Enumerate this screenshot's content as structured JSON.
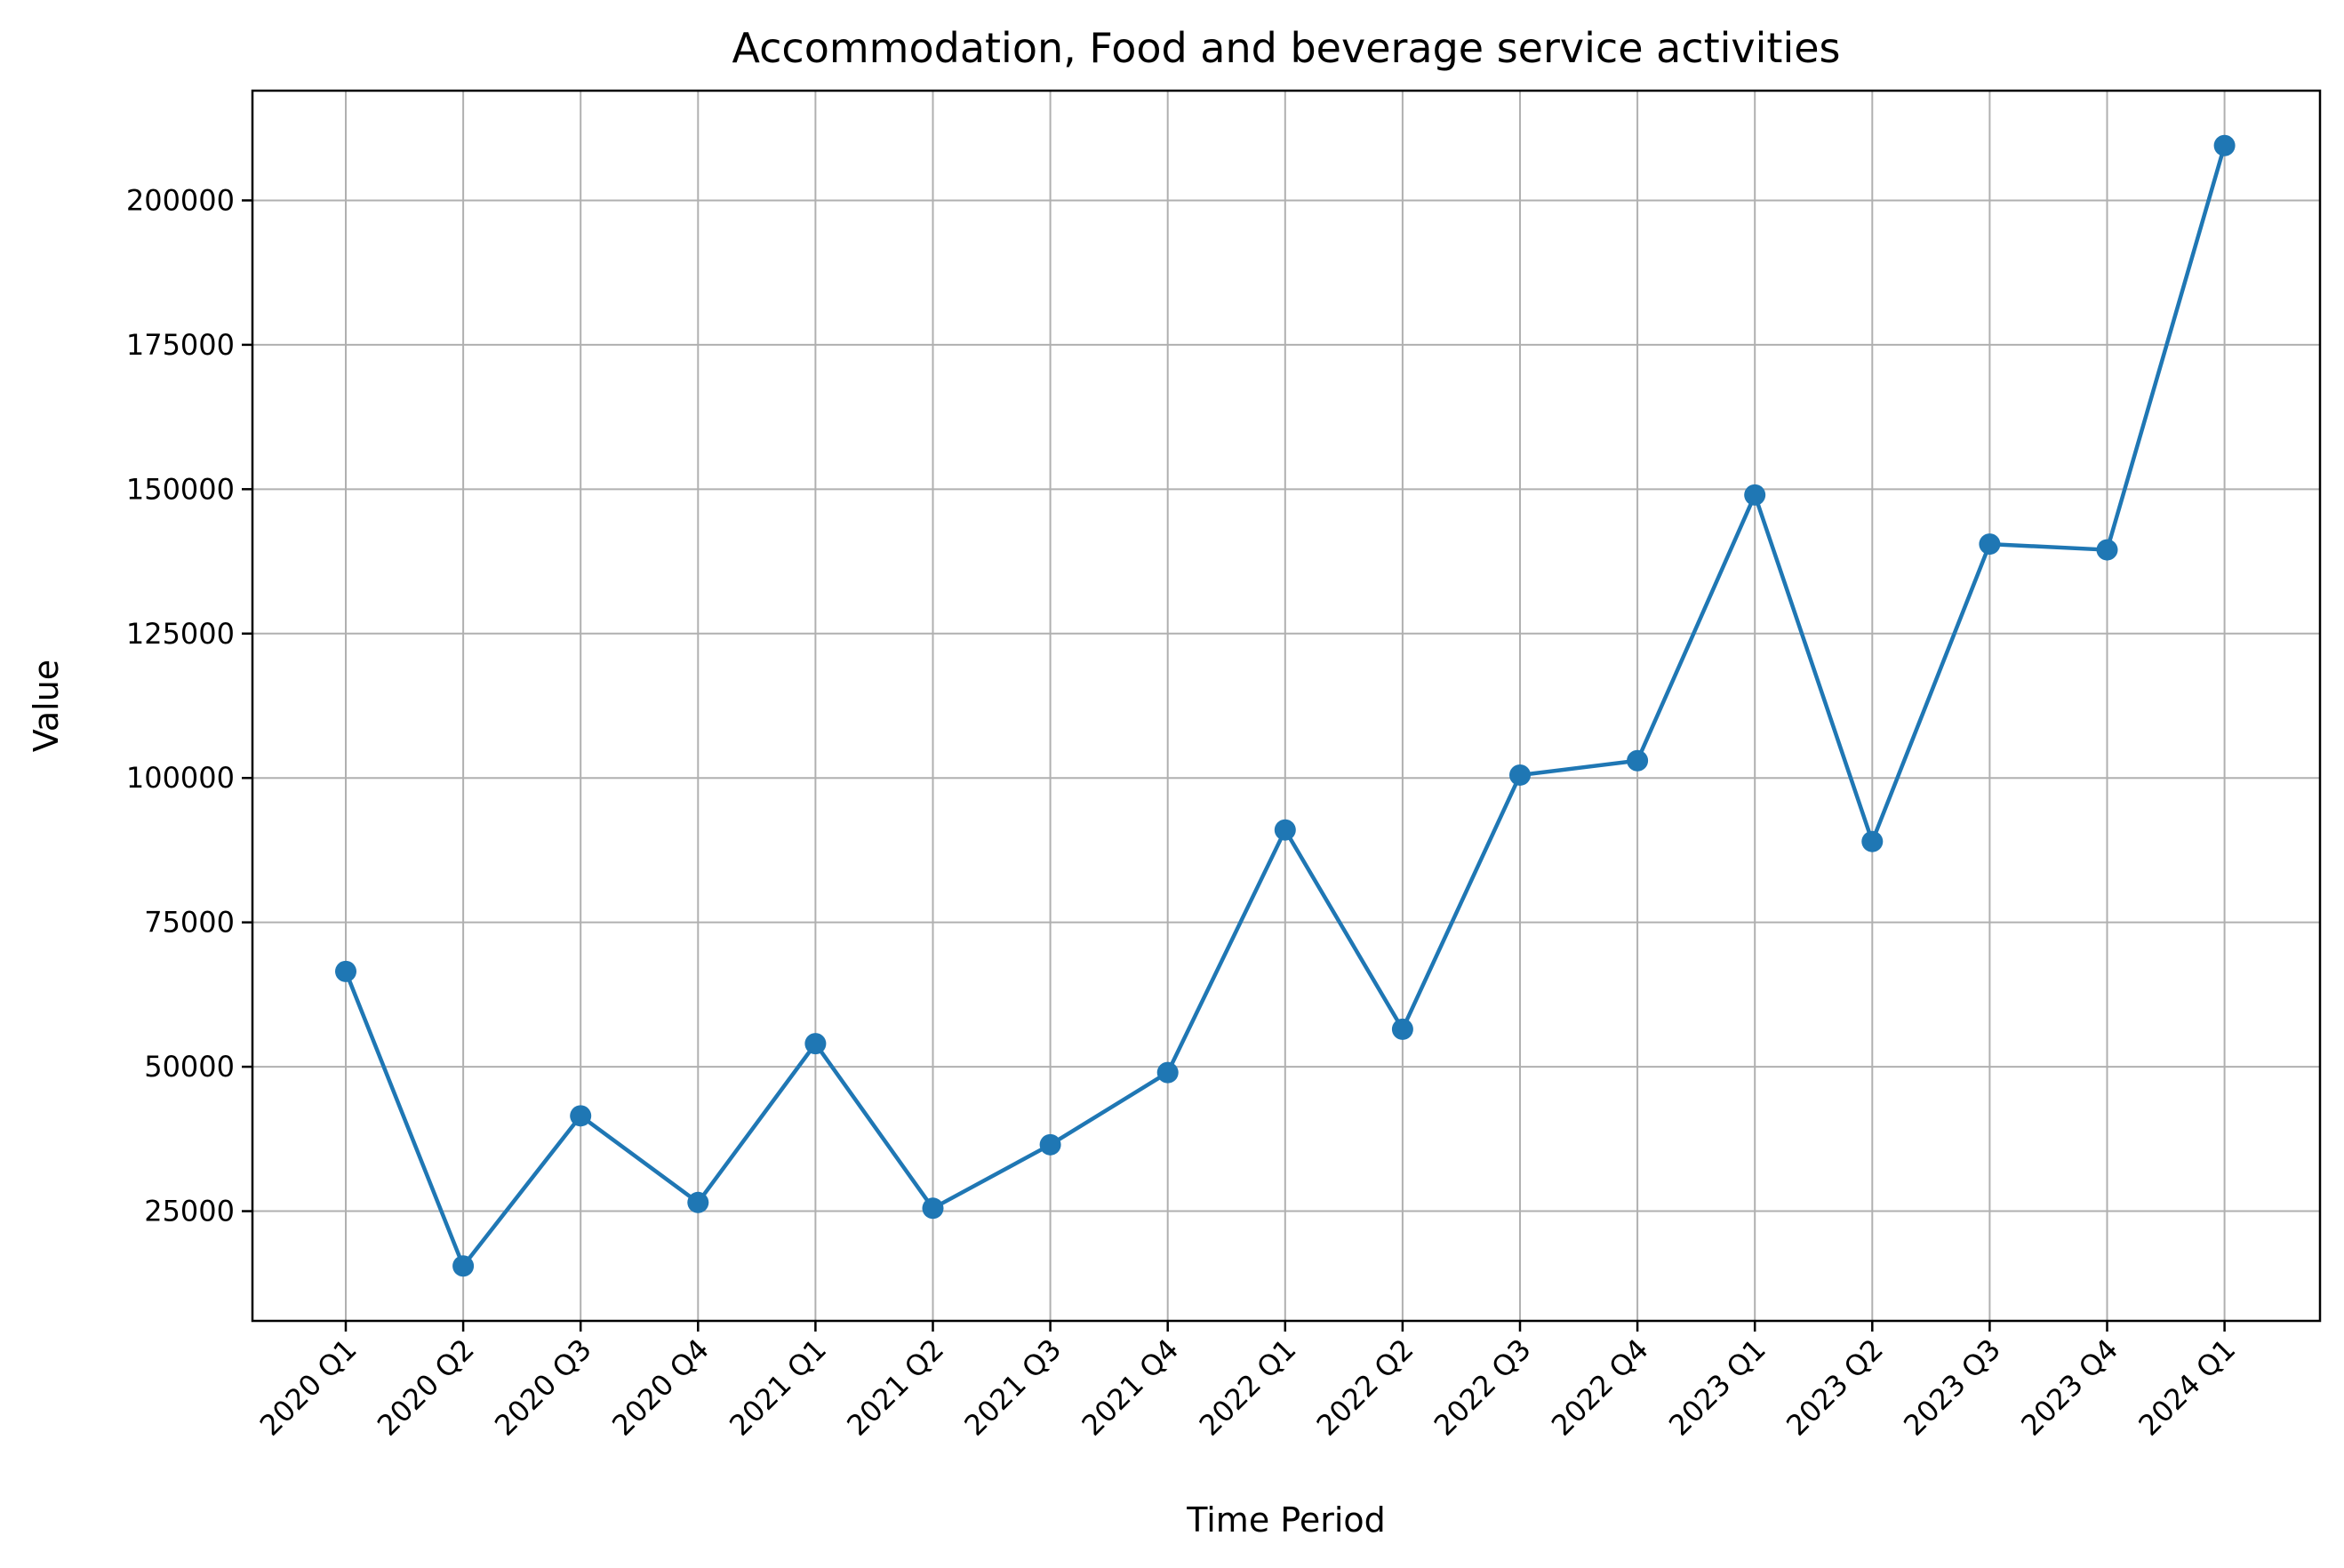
{
  "chart_data": {
    "type": "line",
    "title": "Accommodation, Food and beverage service activities",
    "xlabel": "Time Period",
    "ylabel": "Value",
    "categories": [
      "2020 Q1",
      "2020 Q2",
      "2020 Q3",
      "2020 Q4",
      "2021 Q1",
      "2021 Q2",
      "2021 Q3",
      "2021 Q4",
      "2022 Q1",
      "2022 Q2",
      "2022 Q3",
      "2022 Q4",
      "2023 Q1",
      "2023 Q2",
      "2023 Q3",
      "2023 Q4",
      "2024 Q1"
    ],
    "series": [
      {
        "values": [
          66500,
          15500,
          41500,
          26500,
          54000,
          25500,
          36500,
          49000,
          91000,
          56500,
          100500,
          103000,
          149000,
          89000,
          140500,
          139500,
          209500
        ]
      }
    ],
    "yticks": [
      25000,
      50000,
      75000,
      100000,
      125000,
      150000,
      175000,
      200000
    ],
    "ylim": [
      6000,
      219000
    ],
    "grid": true,
    "legend": "none",
    "color": "#1f77b4"
  }
}
